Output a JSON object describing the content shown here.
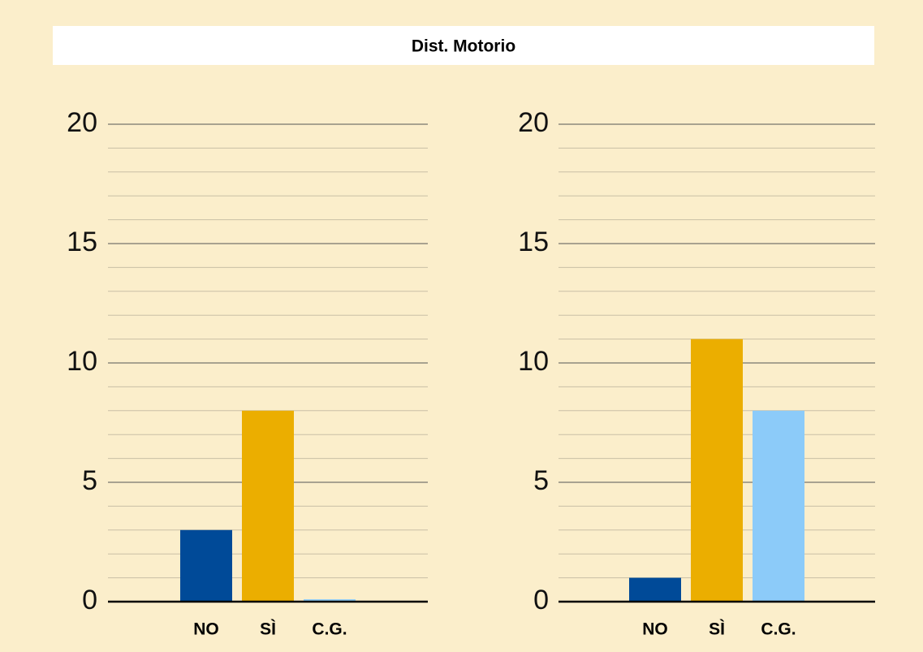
{
  "title": "Dist. Motorio",
  "chart_data": [
    {
      "type": "bar",
      "categories": [
        "NO",
        "SÌ",
        "C.G."
      ],
      "values": [
        3,
        8,
        0.1
      ],
      "colors": [
        "#004a98",
        "#ebae00",
        "#8ccbf9"
      ],
      "ylim": [
        0,
        20
      ],
      "yticks": [
        0,
        5,
        10,
        15,
        20
      ],
      "minor_yticks": [
        1,
        2,
        3,
        4,
        6,
        7,
        8,
        9,
        11,
        12,
        13,
        14,
        16,
        17,
        18,
        19
      ],
      "grid": true
    },
    {
      "type": "bar",
      "categories": [
        "NO",
        "SÌ",
        "C.G."
      ],
      "values": [
        1,
        11,
        8
      ],
      "colors": [
        "#004a98",
        "#ebae00",
        "#8ccbf9"
      ],
      "ylim": [
        0,
        20
      ],
      "yticks": [
        0,
        5,
        10,
        15,
        20
      ],
      "minor_yticks": [
        1,
        2,
        3,
        4,
        6,
        7,
        8,
        9,
        11,
        12,
        13,
        14,
        16,
        17,
        18,
        19
      ],
      "grid": true
    }
  ]
}
